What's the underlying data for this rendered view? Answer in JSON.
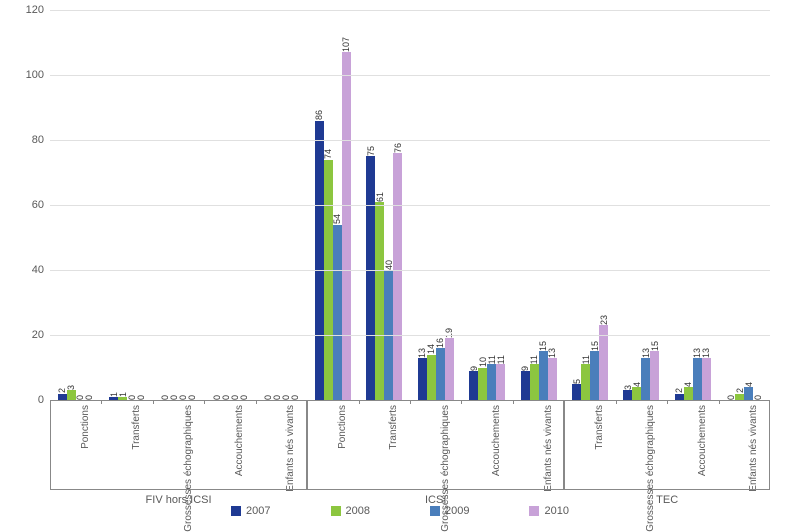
{
  "chart": {
    "type": "bar",
    "background_color": "#ffffff",
    "grid_color": "#e0e0e0",
    "ylim": [
      0,
      120
    ],
    "ytick_step": 20,
    "yticks": [
      0,
      20,
      40,
      60,
      80,
      100,
      120
    ],
    "axis_label_fontsize": 11,
    "axis_label_color": "#595959",
    "bar_label_fontsize": 9,
    "groups": [
      {
        "label": "FIV hors ICSI",
        "categories": [
          "Ponctions",
          "Transferts",
          "Grossesses échographiques",
          "Accouchements",
          "Enfants nés vivants"
        ]
      },
      {
        "label": "ICSI",
        "categories": [
          "Ponctions",
          "Transferts",
          "Grossesses échographiques",
          "Accouchements",
          "Enfants nés vivants"
        ]
      },
      {
        "label": "TEC",
        "categories": [
          "Transferts",
          "Grossesses échographiques",
          "Accouchements",
          "Enfants nés vivants"
        ]
      }
    ],
    "series": [
      {
        "name": "2007",
        "color": "#1f3a93"
      },
      {
        "name": "2008",
        "color": "#8cc63f"
      },
      {
        "name": "2009",
        "color": "#4a7ebb"
      },
      {
        "name": "2010",
        "color": "#c8a2d8"
      }
    ],
    "data": [
      [
        2,
        3,
        0,
        0
      ],
      [
        1,
        1,
        0,
        0
      ],
      [
        0,
        0,
        0,
        0
      ],
      [
        0,
        0,
        0,
        0
      ],
      [
        0,
        0,
        0,
        0
      ],
      [
        86,
        74,
        54,
        107
      ],
      [
        75,
        61,
        40,
        76
      ],
      [
        13,
        14,
        16,
        19
      ],
      [
        9,
        10,
        11,
        11
      ],
      [
        9,
        11,
        15,
        13
      ],
      [
        5,
        11,
        15,
        23
      ],
      [
        3,
        4,
        13,
        15
      ],
      [
        2,
        4,
        13,
        13
      ],
      [
        0,
        2,
        4,
        0
      ]
    ]
  }
}
